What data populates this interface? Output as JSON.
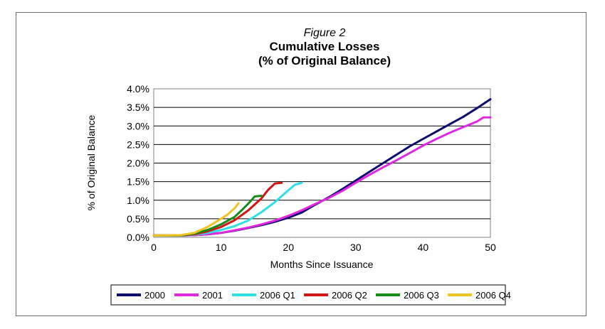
{
  "chart_data": {
    "type": "line",
    "figure_label": "Figure 2",
    "title": "Cumulative Losses",
    "subtitle": "(% of Original Balance)",
    "xlabel": "Months Since Issuance",
    "ylabel": "% of Original Balance",
    "xlim": [
      0,
      50
    ],
    "ylim": [
      0,
      4.0
    ],
    "x_ticks": [
      "0",
      "10",
      "20",
      "30",
      "40",
      "50"
    ],
    "y_ticks": [
      "0.0%",
      "0.5%",
      "1.0%",
      "1.5%",
      "2.0%",
      "2.5%",
      "3.0%",
      "3.5%",
      "4.0%"
    ],
    "grid": "horizontal",
    "legend_position": "bottom",
    "series": [
      {
        "name": "2000",
        "color": "#0d0d6b",
        "x": [
          0,
          4,
          6,
          8,
          10,
          12,
          14,
          16,
          18,
          20,
          22,
          24,
          26,
          28,
          30,
          32,
          34,
          36,
          38,
          40,
          42,
          44,
          46,
          48,
          50
        ],
        "y": [
          0.05,
          0.05,
          0.06,
          0.08,
          0.12,
          0.18,
          0.25,
          0.33,
          0.42,
          0.53,
          0.67,
          0.88,
          1.08,
          1.3,
          1.53,
          1.76,
          1.99,
          2.22,
          2.45,
          2.65,
          2.85,
          3.05,
          3.25,
          3.48,
          3.72
        ]
      },
      {
        "name": "2001",
        "color": "#e028e0",
        "x": [
          0,
          4,
          6,
          8,
          10,
          12,
          14,
          16,
          18,
          20,
          22,
          24,
          26,
          28,
          30,
          32,
          34,
          36,
          38,
          40,
          42,
          44,
          46,
          48,
          49,
          50
        ],
        "y": [
          0.05,
          0.05,
          0.06,
          0.08,
          0.12,
          0.19,
          0.26,
          0.35,
          0.45,
          0.58,
          0.73,
          0.9,
          1.06,
          1.25,
          1.47,
          1.68,
          1.88,
          2.07,
          2.27,
          2.47,
          2.65,
          2.82,
          2.97,
          3.12,
          3.23,
          3.23
        ]
      },
      {
        "name": "2006 Q1",
        "color": "#2de0e8",
        "x": [
          0,
          4,
          6,
          8,
          10,
          12,
          14,
          16,
          18,
          20,
          21,
          22
        ],
        "y": [
          0.05,
          0.05,
          0.07,
          0.12,
          0.2,
          0.3,
          0.45,
          0.68,
          0.95,
          1.27,
          1.42,
          1.47
        ]
      },
      {
        "name": "2006 Q2",
        "color": "#d41515",
        "x": [
          0,
          4,
          6,
          8,
          10,
          12,
          14,
          16,
          17,
          18,
          19
        ],
        "y": [
          0.05,
          0.05,
          0.08,
          0.16,
          0.28,
          0.46,
          0.72,
          1.05,
          1.28,
          1.45,
          1.47
        ]
      },
      {
        "name": "2006 Q3",
        "color": "#168c16",
        "x": [
          0,
          4,
          6,
          8,
          10,
          12,
          13,
          14,
          15,
          16
        ],
        "y": [
          0.05,
          0.05,
          0.1,
          0.2,
          0.35,
          0.55,
          0.72,
          0.9,
          1.1,
          1.12
        ]
      },
      {
        "name": "2006 Q4",
        "color": "#f0c420",
        "x": [
          0,
          4,
          6,
          8,
          10,
          11,
          12,
          12.6
        ],
        "y": [
          0.05,
          0.06,
          0.12,
          0.28,
          0.5,
          0.62,
          0.78,
          0.92
        ]
      }
    ]
  }
}
